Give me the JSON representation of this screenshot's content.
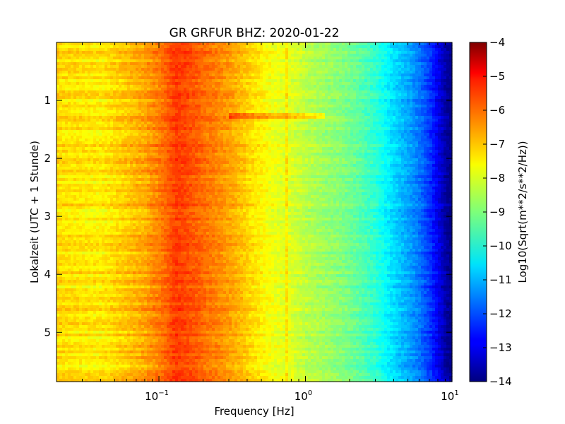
{
  "chart_data": {
    "type": "heatmap",
    "title": "GR GRFUR BHZ: 2020-01-22",
    "xlabel": "Frequency [Hz]",
    "ylabel": "Lokalzeit (UTC + 1 Stunde)",
    "xscale": "log",
    "xlim": [
      0.02,
      10
    ],
    "ylim": [
      0,
      5.85
    ],
    "y_inverted": true,
    "x_ticks": [
      {
        "value": 0.1,
        "base": "10",
        "exp": "−1"
      },
      {
        "value": 1,
        "base": "10",
        "exp": "0"
      },
      {
        "value": 10,
        "base": "10",
        "exp": "1"
      }
    ],
    "y_ticks": [
      {
        "value": 1,
        "label": "1"
      },
      {
        "value": 2,
        "label": "2"
      },
      {
        "value": 3,
        "label": "3"
      },
      {
        "value": 4,
        "label": "4"
      },
      {
        "value": 5,
        "label": "5"
      }
    ],
    "colorbar": {
      "label": "Log10(Sqrt(m**2/s**2/Hz))",
      "vmin": -14,
      "vmax": -4,
      "colormap": "jet",
      "ticks": [
        {
          "value": -4,
          "label": "−4"
        },
        {
          "value": -5,
          "label": "−5"
        },
        {
          "value": -6,
          "label": "−6"
        },
        {
          "value": -7,
          "label": "−7"
        },
        {
          "value": -8,
          "label": "−8"
        },
        {
          "value": -9,
          "label": "−9"
        },
        {
          "value": -10,
          "label": "−10"
        },
        {
          "value": -11,
          "label": "−11"
        },
        {
          "value": -12,
          "label": "−12"
        },
        {
          "value": -13,
          "label": "−13"
        },
        {
          "value": -14,
          "label": "−14"
        }
      ]
    },
    "spectrum_profile": {
      "freq_hz": [
        0.02,
        0.04,
        0.06,
        0.08,
        0.11,
        0.13,
        0.16,
        0.2,
        0.3,
        0.45,
        0.6,
        0.8,
        1.0,
        1.5,
        2.0,
        3.0,
        4.0,
        5.0,
        6.0,
        7.0,
        8.0,
        9.0,
        10.0
      ],
      "value": [
        -7.4,
        -7.6,
        -7.2,
        -6.9,
        -6.3,
        -5.8,
        -6.0,
        -6.3,
        -6.8,
        -7.5,
        -7.9,
        -8.1,
        -8.4,
        -8.8,
        -9.1,
        -9.8,
        -10.6,
        -11.1,
        -11.6,
        -12.2,
        -12.9,
        -13.6,
        -14.0
      ]
    },
    "features": [
      {
        "label": "narrow band near 0.75 Hz",
        "freq_hz": 0.75,
        "delta": 0.5
      },
      {
        "label": "transient at ~1.3 h",
        "time_h": 1.27,
        "freq_range_hz": [
          0.3,
          1.35
        ],
        "delta": 0.9
      }
    ]
  }
}
